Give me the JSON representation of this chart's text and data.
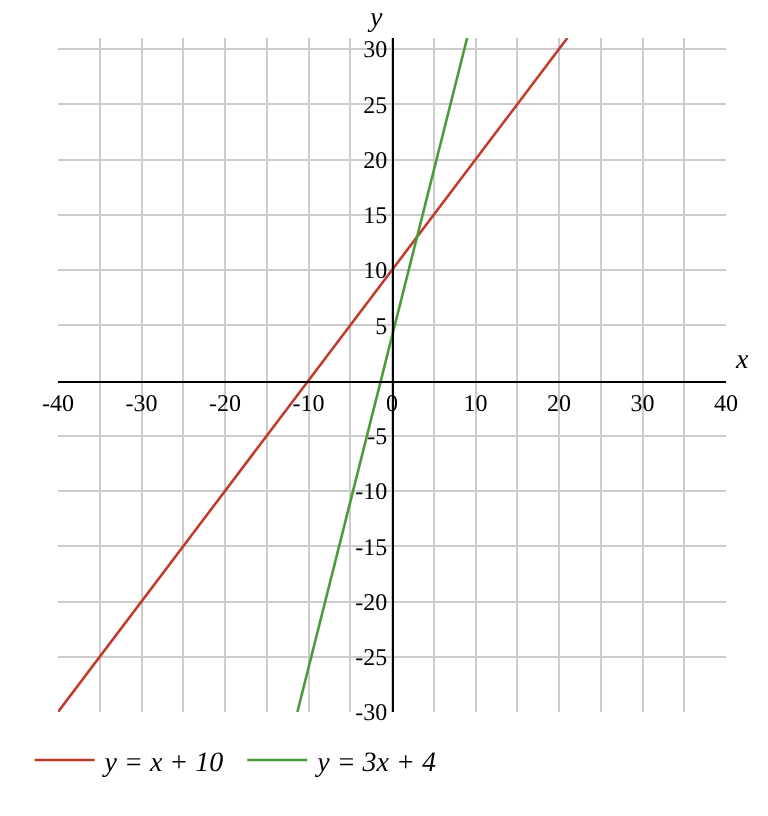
{
  "chart_data": {
    "type": "line",
    "xlabel": "x",
    "ylabel": "y",
    "xlim": [
      -40,
      40
    ],
    "ylim": [
      -30,
      31
    ],
    "xticks": [
      -40,
      {
        "value": -35,
        "label": null
      },
      -30,
      {
        "value": -25,
        "label": null
      },
      -20,
      {
        "value": -15,
        "label": null
      },
      -10,
      {
        "value": -5,
        "label": null
      },
      0,
      {
        "value": 5,
        "label": null
      },
      10,
      {
        "value": 15,
        "label": null
      },
      20,
      {
        "value": 25,
        "label": null
      },
      30,
      {
        "value": 35,
        "label": null
      },
      40
    ],
    "yticks": [
      -30,
      -25,
      -20,
      -15,
      -10,
      -5,
      5,
      10,
      15,
      20,
      25,
      30
    ],
    "grid": true,
    "legend": "bottom",
    "marker": "none",
    "line_style": "solid",
    "series": [
      {
        "name": "y = x + 10",
        "color": "#c0392b",
        "x": [
          -40,
          21
        ],
        "values": [
          -30,
          31
        ]
      },
      {
        "name": "y = 3x + 4",
        "color": "#4a9a3a",
        "x": [
          -11.333,
          9
        ],
        "values": [
          -30,
          31
        ]
      }
    ]
  }
}
